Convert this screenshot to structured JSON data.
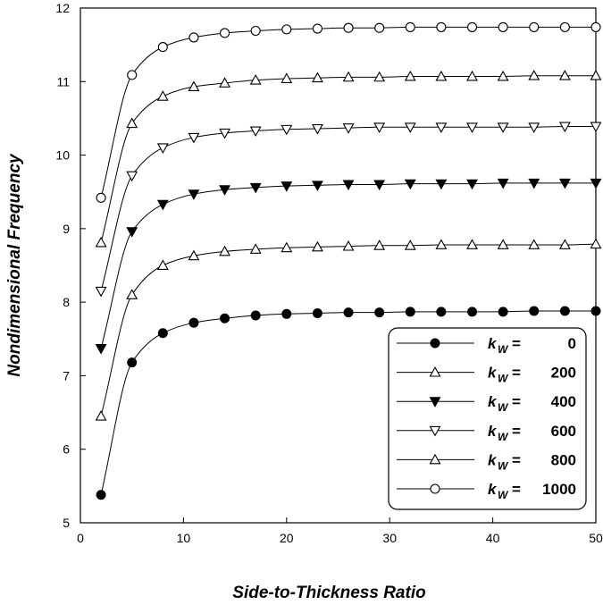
{
  "chart_data": {
    "type": "line",
    "title": "",
    "xlabel": "Side-to-Thickness  Ratio",
    "ylabel": "Nondimensional  Frequency",
    "xlim": [
      0,
      50
    ],
    "ylim": [
      5,
      12
    ],
    "xticks": [
      0,
      10,
      20,
      30,
      40,
      50
    ],
    "yticks": [
      5,
      6,
      7,
      8,
      9,
      10,
      11,
      12
    ],
    "grid": false,
    "legend_position": "bottom-right",
    "x": [
      2,
      5,
      8,
      11,
      14,
      17,
      20,
      23,
      26,
      29,
      32,
      35,
      38,
      41,
      44,
      47,
      50
    ],
    "series": [
      {
        "name": "kw = 0",
        "symbol": "k",
        "subscript": "W",
        "eq": "=",
        "value": "0",
        "marker": "filled-circle",
        "values": [
          5.38,
          7.18,
          7.58,
          7.72,
          7.78,
          7.82,
          7.84,
          7.85,
          7.86,
          7.86,
          7.87,
          7.87,
          7.87,
          7.87,
          7.88,
          7.88,
          7.88
        ]
      },
      {
        "name": "kw = 200",
        "symbol": "k",
        "subscript": "W",
        "eq": "=",
        "value": "200",
        "marker": "open-triangle-up",
        "values": [
          6.45,
          8.1,
          8.5,
          8.63,
          8.69,
          8.72,
          8.74,
          8.75,
          8.76,
          8.77,
          8.77,
          8.78,
          8.78,
          8.78,
          8.78,
          8.78,
          8.79
        ]
      },
      {
        "name": "kw = 400",
        "symbol": "k",
        "subscript": "W",
        "eq": "=",
        "value": "400",
        "marker": "filled-triangle-down",
        "values": [
          7.37,
          8.96,
          9.33,
          9.47,
          9.53,
          9.56,
          9.58,
          9.59,
          9.6,
          9.6,
          9.61,
          9.61,
          9.61,
          9.62,
          9.62,
          9.62,
          9.62
        ]
      },
      {
        "name": "kw = 600",
        "symbol": "k",
        "subscript": "W",
        "eq": "=",
        "value": "600",
        "marker": "open-triangle-down",
        "values": [
          8.15,
          9.72,
          10.1,
          10.24,
          10.3,
          10.33,
          10.35,
          10.36,
          10.37,
          10.38,
          10.38,
          10.38,
          10.38,
          10.38,
          10.38,
          10.39,
          10.39
        ]
      },
      {
        "name": "kw = 800",
        "symbol": "k",
        "subscript": "W",
        "eq": "=",
        "value": "800",
        "marker": "open-triangle-up",
        "values": [
          8.81,
          10.43,
          10.8,
          10.93,
          10.98,
          11.02,
          11.04,
          11.05,
          11.06,
          11.06,
          11.07,
          11.07,
          11.07,
          11.07,
          11.08,
          11.08,
          11.08
        ]
      },
      {
        "name": "kw = 1000",
        "symbol": "k",
        "subscript": "W",
        "eq": "=",
        "value": "1000",
        "marker": "open-circle",
        "values": [
          9.42,
          11.09,
          11.47,
          11.6,
          11.66,
          11.69,
          11.71,
          11.72,
          11.73,
          11.73,
          11.74,
          11.74,
          11.74,
          11.74,
          11.74,
          11.74,
          11.74
        ]
      }
    ]
  }
}
